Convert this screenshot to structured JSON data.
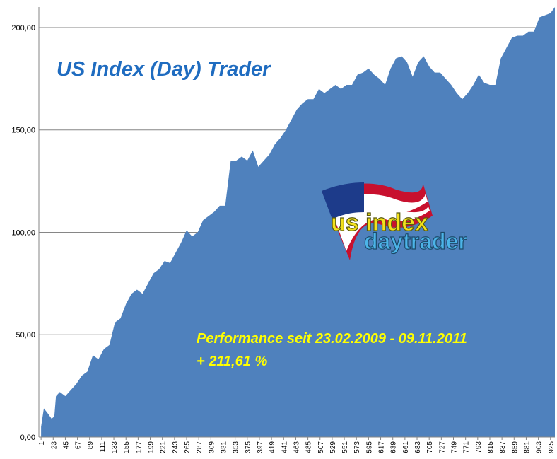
{
  "chart_data": {
    "type": "area",
    "title": "US Index (Day) Trader",
    "annotations": [
      "Performance  seit  23.02.2009 - 09.11.2011",
      "+ 211,61  %"
    ],
    "color": "#4f81bd",
    "grid": true,
    "x": [
      1,
      6,
      12,
      20,
      25,
      28,
      35,
      45,
      55,
      65,
      75,
      85,
      95,
      105,
      115,
      125,
      135,
      145,
      155,
      165,
      175,
      185,
      195,
      205,
      215,
      225,
      235,
      245,
      255,
      265,
      275,
      285,
      295,
      305,
      315,
      325,
      335,
      345,
      355,
      365,
      375,
      385,
      395,
      405,
      415,
      425,
      435,
      445,
      455,
      465,
      475,
      485,
      495,
      505,
      515,
      525,
      535,
      545,
      555,
      565,
      575,
      585,
      595,
      605,
      615,
      625,
      635,
      645,
      655,
      665,
      675,
      685,
      695,
      705,
      715,
      725,
      735,
      745,
      755,
      765,
      775,
      785,
      795,
      805,
      815,
      825,
      835,
      845,
      855,
      865,
      875,
      885,
      895,
      905,
      915,
      925,
      933
    ],
    "values": [
      5,
      14,
      12,
      9,
      10,
      20,
      22,
      20,
      23,
      26,
      30,
      32,
      40,
      38,
      43,
      45,
      56,
      58,
      65,
      70,
      72,
      70,
      75,
      80,
      82,
      86,
      85,
      90,
      95,
      101,
      98,
      100,
      106,
      108,
      110,
      113,
      113,
      135,
      135,
      137,
      135,
      140,
      132,
      135,
      138,
      143,
      146,
      150,
      155,
      160,
      163,
      165,
      165,
      170,
      168,
      170,
      172,
      170,
      172,
      172,
      177,
      178,
      180,
      177,
      175,
      172,
      180,
      185,
      186,
      183,
      176,
      183,
      186,
      181,
      178,
      178,
      175,
      172,
      168,
      165,
      168,
      172,
      177,
      173,
      172,
      172,
      185,
      190,
      195,
      196,
      196,
      198,
      198,
      205,
      206,
      207,
      210
    ],
    "xlim": [
      -3,
      933
    ],
    "xticks": [
      1,
      23,
      45,
      67,
      89,
      111,
      133,
      155,
      177,
      199,
      221,
      243,
      265,
      287,
      309,
      331,
      353,
      375,
      397,
      419,
      441,
      463,
      485,
      507,
      529,
      551,
      573,
      595,
      617,
      639,
      661,
      683,
      705,
      727,
      749,
      771,
      793,
      815,
      837,
      859,
      881,
      903,
      925
    ],
    "ylim": [
      0,
      210
    ],
    "yticks": [
      {
        "value": 0,
        "label": "0,00"
      },
      {
        "value": 50,
        "label": "50,00"
      },
      {
        "value": 100,
        "label": "100,00"
      },
      {
        "value": 150,
        "label": "150,00"
      },
      {
        "value": 200,
        "label": "200,00"
      }
    ]
  },
  "logo": {
    "line1": "us index",
    "line2": "daytrader"
  }
}
